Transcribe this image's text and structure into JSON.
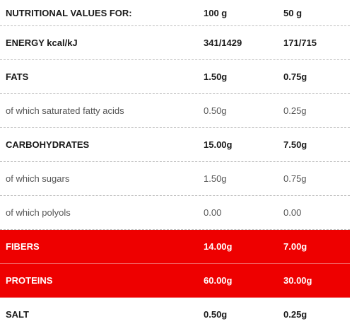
{
  "header": {
    "label": "NUTRITIONAL VALUES FOR:",
    "col1": "100 g",
    "col2": "50 g"
  },
  "rows": [
    {
      "label": "ENERGY kcal/kJ",
      "v100": "341/1429",
      "v50": "171/715"
    },
    {
      "label": "FATS",
      "v100": "1.50g",
      "v50": "0.75g"
    },
    {
      "label": "of which saturated fatty acids",
      "v100": "0.50g",
      "v50": "0.25g"
    },
    {
      "label": "CARBOHYDRATES",
      "v100": "15.00g",
      "v50": "7.50g"
    },
    {
      "label": "of which sugars",
      "v100": "1.50g",
      "v50": "0.75g"
    },
    {
      "label": "of which polyols",
      "v100": "0.00",
      "v50": "0.00"
    },
    {
      "label": "FIBERS",
      "v100": "14.00g",
      "v50": "7.00g"
    },
    {
      "label": "PROTEINS",
      "v100": "60.00g",
      "v50": "30.00g"
    },
    {
      "label": "SALT",
      "v100": "0.50g",
      "v50": "0.25g"
    }
  ],
  "colors": {
    "highlight": "#ee0000",
    "text": "#222222",
    "divider": "#bdbdbd"
  }
}
